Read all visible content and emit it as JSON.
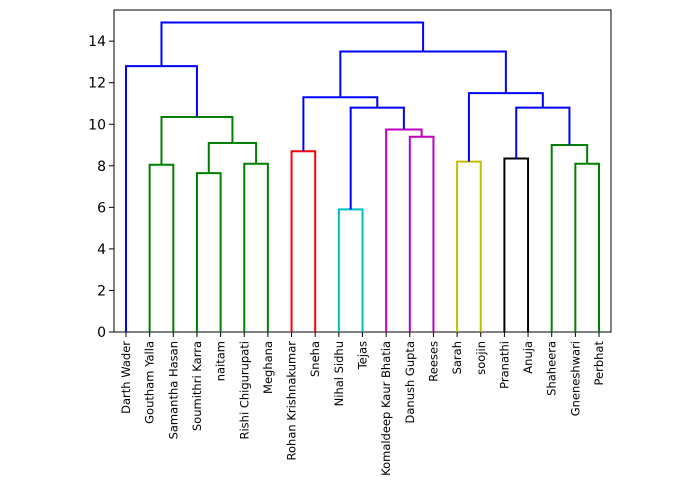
{
  "chart_data": {
    "type": "dendrogram",
    "title": "",
    "xlabel": "",
    "ylabel": "",
    "ylim": [
      0,
      15.5
    ],
    "yticks": [
      0,
      2,
      4,
      6,
      8,
      10,
      12,
      14
    ],
    "grid": false,
    "leaves": [
      "Darth Wader",
      "Goutham Yalla",
      "Samantha Hasan",
      "Soumithri Karra",
      "naitam",
      "Rishi Chigurupati",
      "Meghana",
      "Rohan Krishnakumar",
      "Sneha",
      "Nihal Sidhu",
      "Tejas",
      "Komaldeep Kaur Bhatia",
      "Danush Gupta",
      "Reeses",
      "Sarah",
      "soojin",
      "Pranathi",
      "Anuja",
      "Shaheera",
      "Gneneshwari",
      "Perbhat"
    ],
    "merges": [
      {
        "left": "Goutham Yalla",
        "right": "Samantha Hasan",
        "height": 8.05,
        "color": "#008000"
      },
      {
        "left": "Soumithri Karra",
        "right": "naitam",
        "height": 7.65,
        "color": "#008000"
      },
      {
        "left": "Rishi Chigurupati",
        "right": "Meghana",
        "height": 8.1,
        "color": "#008000"
      },
      {
        "left": "Soumithri Karra+naitam",
        "right": "Rishi Chigurupati+Meghana",
        "height": 9.1,
        "color": "#008000"
      },
      {
        "left": "Goutham Yalla+Samantha Hasan",
        "right": "Soumithri Karra+naitam+Rishi Chigurupati+Meghana",
        "height": 10.35,
        "color": "#008000"
      },
      {
        "left": "Darth Wader",
        "right": "Goutham Yalla..Meghana",
        "height": 12.8,
        "color": "#0000ff"
      },
      {
        "left": "Rohan Krishnakumar",
        "right": "Sneha",
        "height": 8.7,
        "color": "#ff0000"
      },
      {
        "left": "Nihal Sidhu",
        "right": "Tejas",
        "height": 5.9,
        "color": "#00bfbf"
      },
      {
        "left": "Danush Gupta",
        "right": "Reeses",
        "height": 9.4,
        "color": "#bf00bf"
      },
      {
        "left": "Komaldeep Kaur Bhatia",
        "right": "Danush Gupta+Reeses",
        "height": 9.75,
        "color": "#bf00bf"
      },
      {
        "left": "Nihal Sidhu+Tejas",
        "right": "Komaldeep Kaur Bhatia..Reeses",
        "height": 10.8,
        "color": "#0000ff"
      },
      {
        "left": "Rohan Krishnakumar+Sneha",
        "right": "Nihal Sidhu..Reeses",
        "height": 11.3,
        "color": "#0000ff"
      },
      {
        "left": "Sarah",
        "right": "soojin",
        "height": 8.2,
        "color": "#bfbf00"
      },
      {
        "left": "Pranathi",
        "right": "Anuja",
        "height": 8.35,
        "color": "#000000"
      },
      {
        "left": "Gneneshwari",
        "right": "Perbhat",
        "height": 8.1,
        "color": "#008000"
      },
      {
        "left": "Shaheera",
        "right": "Gneneshwari+Perbhat",
        "height": 9.0,
        "color": "#008000"
      },
      {
        "left": "Pranathi+Anuja",
        "right": "Shaheera..Perbhat",
        "height": 10.8,
        "color": "#0000ff"
      },
      {
        "left": "Sarah+soojin",
        "right": "Pranathi..Perbhat",
        "height": 11.5,
        "color": "#0000ff"
      },
      {
        "left": "Rohan Krishnakumar..Reeses",
        "right": "Sarah..Perbhat",
        "height": 13.5,
        "color": "#0000ff"
      },
      {
        "left": "Darth Wader..Meghana",
        "right": "Rohan Krishnakumar..Perbhat",
        "height": 14.9,
        "color": "#0000ff"
      }
    ]
  }
}
